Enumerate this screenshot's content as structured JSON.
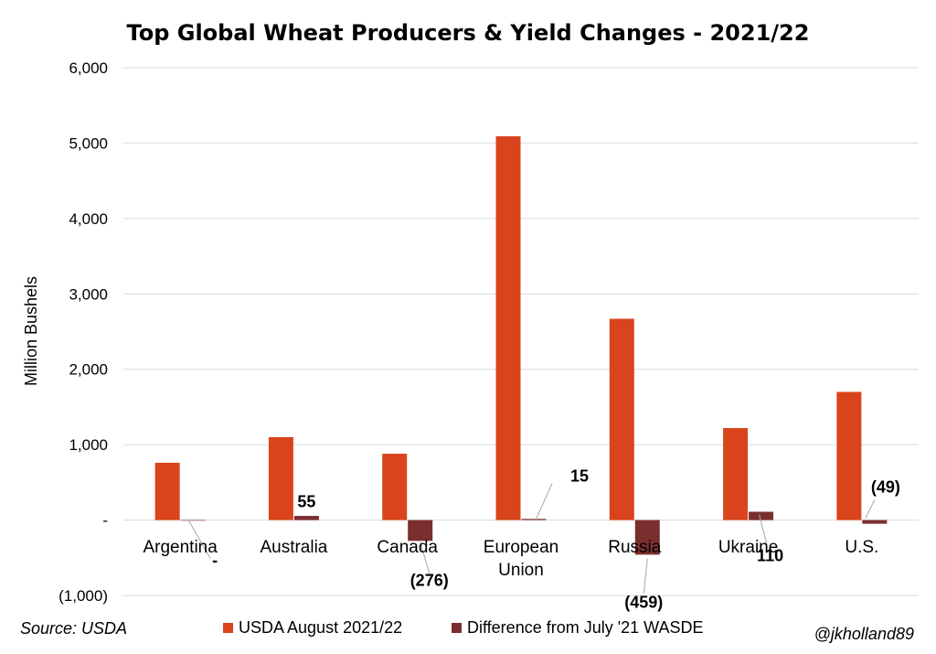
{
  "chart_data": {
    "type": "bar",
    "title": "Top Global Wheat Producers & Yield Changes - 2021/22",
    "ylabel": "Million Bushels",
    "xlabel": "",
    "ylim": [
      -1000,
      6000
    ],
    "yticks": [
      -1000,
      0,
      1000,
      2000,
      3000,
      4000,
      5000,
      6000
    ],
    "ytick_labels": [
      "(1,000)",
      "-",
      "1,000",
      "2,000",
      "3,000",
      "4,000",
      "5,000",
      "6,000"
    ],
    "grid": true,
    "legend_position": "bottom",
    "categories": [
      {
        "line1": "Argentina",
        "line2": ""
      },
      {
        "line1": "Australia",
        "line2": ""
      },
      {
        "line1": "Canada",
        "line2": ""
      },
      {
        "line1": "European",
        "line2": "Union"
      },
      {
        "line1": "Russia",
        "line2": ""
      },
      {
        "line1": "Ukraine",
        "line2": ""
      },
      {
        "line1": "U.S.",
        "line2": ""
      }
    ],
    "series": [
      {
        "name": "USDA August 2021/22",
        "color": "#D9441C",
        "values": [
          760,
          1100,
          880,
          5090,
          2670,
          1220,
          1700
        ]
      },
      {
        "name": "Difference from July '21 WASDE",
        "color": "#7B2E2E",
        "values": [
          0,
          55,
          -276,
          15,
          -459,
          110,
          -49
        ],
        "data_labels": [
          "-",
          "55",
          "(276)",
          "15",
          "(459)",
          "110",
          "(49)"
        ]
      }
    ]
  },
  "footer": {
    "source": "Source: USDA",
    "credit": "@jkholland89"
  }
}
